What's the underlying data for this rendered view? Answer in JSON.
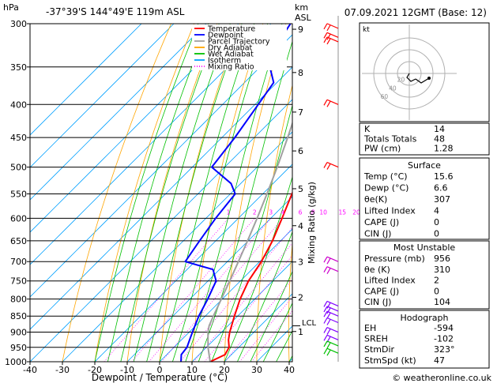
{
  "header": {
    "location": "-37°39'S 144°49'E 119m ASL",
    "datetime": "07.09.2021 12GMT (Base: 12)"
  },
  "axes": {
    "pressure_unit": "hPa",
    "height_unit_line1": "km",
    "height_unit_line2": "ASL",
    "xlabel": "Dewpoint / Temperature (°C)",
    "mixing_ratio_label": "Mixing Ratio (g/kg)",
    "pressure_ticks": [
      "300",
      "350",
      "400",
      "450",
      "500",
      "550",
      "600",
      "650",
      "700",
      "750",
      "800",
      "850",
      "900",
      "950",
      "1000"
    ],
    "temp_ticks": [
      "-40",
      "-30",
      "-20",
      "-10",
      "0",
      "10",
      "20",
      "30",
      "40"
    ],
    "height_ticks": [
      {
        "label": "9",
        "p": 306
      },
      {
        "label": "8",
        "p": 357
      },
      {
        "label": "7",
        "p": 411
      },
      {
        "label": "6",
        "p": 472
      },
      {
        "label": "5",
        "p": 540
      },
      {
        "label": "4",
        "p": 616
      },
      {
        "label": "3",
        "p": 701
      },
      {
        "label": "2",
        "p": 795
      },
      {
        "label": "1",
        "p": 898
      }
    ],
    "lcl_label": "LCL",
    "mixing_ratio_values": [
      "1",
      "2",
      "3",
      "4",
      "6",
      "8",
      "10",
      "15",
      "20",
      "25"
    ]
  },
  "legend": [
    {
      "label": "Temperature",
      "color": "#ff0000",
      "dash": ""
    },
    {
      "label": "Dewpoint",
      "color": "#0000ff",
      "dash": ""
    },
    {
      "label": "Parcel Trajectory",
      "color": "#a0a0a0",
      "dash": ""
    },
    {
      "label": "Dry Adiabat",
      "color": "#ffa500",
      "dash": ""
    },
    {
      "label": "Wet Adiabat",
      "color": "#00c000",
      "dash": ""
    },
    {
      "label": "Isotherm",
      "color": "#00a0ff",
      "dash": ""
    },
    {
      "label": "Mixing Ratio",
      "color": "#ff00ff",
      "dash": "1,2"
    }
  ],
  "chart_data": {
    "type": "line",
    "title": "",
    "xlabel": "Dewpoint / Temperature (°C)",
    "ylabel": "hPa",
    "xlim": [
      -40,
      40
    ],
    "ylim": [
      1000,
      300
    ],
    "yscale": "log",
    "skew": true,
    "series": [
      {
        "name": "Temperature",
        "color": "#ff0000",
        "points": [
          [
            1000,
            15.6
          ],
          [
            975,
            18.0
          ],
          [
            950,
            17.0
          ],
          [
            925,
            14.5
          ],
          [
            900,
            12.5
          ],
          [
            850,
            9.0
          ],
          [
            800,
            5.5
          ],
          [
            750,
            2.5
          ],
          [
            700,
            0.5
          ],
          [
            650,
            -2.5
          ],
          [
            600,
            -6.5
          ],
          [
            550,
            -11.0
          ],
          [
            500,
            -15.0
          ],
          [
            450,
            -20.5
          ],
          [
            400,
            -27.0
          ],
          [
            350,
            -35.0
          ],
          [
            300,
            -43.0
          ]
        ]
      },
      {
        "name": "Dewpoint",
        "color": "#0000ff",
        "points": [
          [
            1000,
            6.6
          ],
          [
            975,
            4.5
          ],
          [
            950,
            4.0
          ],
          [
            925,
            2.5
          ],
          [
            900,
            1.0
          ],
          [
            850,
            -2.0
          ],
          [
            800,
            -4.5
          ],
          [
            750,
            -7.5
          ],
          [
            720,
            -12.0
          ],
          [
            700,
            -23.0
          ],
          [
            650,
            -25.0
          ],
          [
            600,
            -27.0
          ],
          [
            550,
            -28.5
          ],
          [
            530,
            -33.0
          ],
          [
            500,
            -44.0
          ],
          [
            450,
            -46.0
          ],
          [
            400,
            -49.0
          ],
          [
            370,
            -51.0
          ],
          [
            350,
            -57.0
          ],
          [
            320,
            -62.0
          ],
          [
            300,
            -64.0
          ]
        ]
      },
      {
        "name": "Parcel Trajectory",
        "color": "#a0a0a0",
        "points": [
          [
            1000,
            15.6
          ],
          [
            950,
            10.5
          ],
          [
            900,
            5.8
          ],
          [
            880,
            4.2
          ],
          [
            850,
            2.5
          ],
          [
            800,
            -0.3
          ],
          [
            750,
            -3.3
          ],
          [
            700,
            -6.6
          ],
          [
            650,
            -10.2
          ],
          [
            600,
            -14.2
          ],
          [
            550,
            -18.7
          ],
          [
            500,
            -23.8
          ],
          [
            450,
            -29.7
          ],
          [
            400,
            -36.5
          ],
          [
            350,
            -44.5
          ],
          [
            300,
            -53.8
          ]
        ]
      }
    ]
  },
  "indices": {
    "rows": [
      {
        "label": "K",
        "value": "14"
      },
      {
        "label": "Totals Totals",
        "value": "48"
      },
      {
        "label": "PW (cm)",
        "value": "1.28"
      }
    ]
  },
  "surface": {
    "title": "Surface",
    "rows": [
      {
        "label": "Temp (°C)",
        "value": "15.6"
      },
      {
        "label": "Dewp (°C)",
        "value": "6.6"
      },
      {
        "label": "θe(K)",
        "value": "307"
      },
      {
        "label": "Lifted Index",
        "value": "4"
      },
      {
        "label": "CAPE (J)",
        "value": "0"
      },
      {
        "label": "CIN (J)",
        "value": "0"
      }
    ]
  },
  "most_unstable": {
    "title": "Most Unstable",
    "rows": [
      {
        "label": "Pressure (mb)",
        "value": "956"
      },
      {
        "label": "θe (K)",
        "value": "310"
      },
      {
        "label": "Lifted Index",
        "value": "2"
      },
      {
        "label": "CAPE (J)",
        "value": "0"
      },
      {
        "label": "CIN (J)",
        "value": "104"
      }
    ]
  },
  "hodograph": {
    "title": "Hodograph",
    "rows": [
      {
        "label": "EH",
        "value": "-594"
      },
      {
        "label": "SREH",
        "value": "-102"
      },
      {
        "label": "StmDir",
        "value": "323°"
      },
      {
        "label": "StmSpd (kt)",
        "value": "47"
      }
    ],
    "plot_label": "kt",
    "ring_labels": [
      "20",
      "40",
      "60"
    ]
  },
  "footer": {
    "credit": "© weatheronline.co.uk"
  }
}
